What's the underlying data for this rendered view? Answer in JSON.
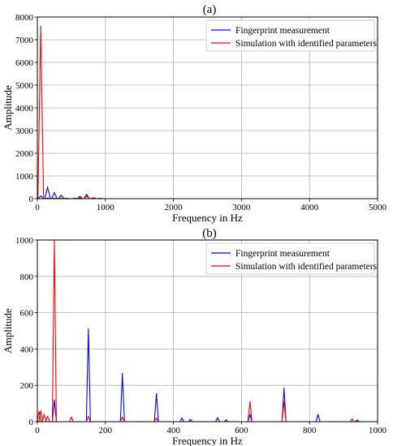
{
  "chart_data": [
    {
      "type": "line",
      "title": "(a)",
      "xlabel": "Frequency in Hz",
      "ylabel": "Amplitude",
      "xlim": [
        0,
        5000
      ],
      "ylim": [
        0,
        8000
      ],
      "xticks": [
        0,
        1000,
        2000,
        3000,
        4000,
        5000
      ],
      "yticks": [
        0,
        1000,
        2000,
        3000,
        4000,
        5000,
        6000,
        7000,
        8000
      ],
      "grid": true,
      "legend_position": "top-right",
      "series": [
        {
          "name": "Fingerprint measurement",
          "color": "#0000ff",
          "peaks": [
            [
              50,
              120
            ],
            [
              150,
              510
            ],
            [
              250,
              265
            ],
            [
              350,
              155
            ],
            [
              425,
              20
            ],
            [
              550,
              20
            ],
            [
              625,
              40
            ],
            [
              725,
              185
            ],
            [
              825,
              40
            ]
          ]
        },
        {
          "name": "Simulation with identified parameters",
          "color": "#ff0000",
          "peaks": [
            [
              50,
              7600
            ],
            [
              150,
              30
            ],
            [
              250,
              25
            ],
            [
              350,
              20
            ],
            [
              625,
              110
            ],
            [
              725,
              110
            ],
            [
              925,
              15
            ]
          ]
        }
      ]
    },
    {
      "type": "line",
      "title": "(b)",
      "xlabel": "Frequency in Hz",
      "ylabel": "Amplitude",
      "xlim": [
        0,
        1000
      ],
      "ylim": [
        0,
        1000
      ],
      "xticks": [
        0,
        200,
        400,
        600,
        800,
        1000
      ],
      "yticks": [
        0,
        200,
        400,
        600,
        800,
        1000
      ],
      "grid": true,
      "legend_position": "top-right",
      "series": [
        {
          "name": "Fingerprint measurement",
          "color": "#0000ff",
          "peaks": [
            [
              50,
              120
            ],
            [
              150,
              510
            ],
            [
              250,
              265
            ],
            [
              350,
              155
            ],
            [
              425,
              20
            ],
            [
              450,
              12
            ],
            [
              530,
              22
            ],
            [
              555,
              10
            ],
            [
              625,
              40
            ],
            [
              725,
              185
            ],
            [
              825,
              40
            ],
            [
              940,
              8
            ]
          ]
        },
        {
          "name": "Simulation with identified parameters",
          "color": "#ff0000",
          "peaks": [
            [
              5,
              55
            ],
            [
              10,
              60
            ],
            [
              20,
              40
            ],
            [
              30,
              30
            ],
            [
              50,
              1000
            ],
            [
              100,
              25
            ],
            [
              150,
              30
            ],
            [
              250,
              25
            ],
            [
              350,
              20
            ],
            [
              625,
              110
            ],
            [
              725,
              110
            ],
            [
              925,
              15
            ]
          ]
        }
      ]
    }
  ]
}
